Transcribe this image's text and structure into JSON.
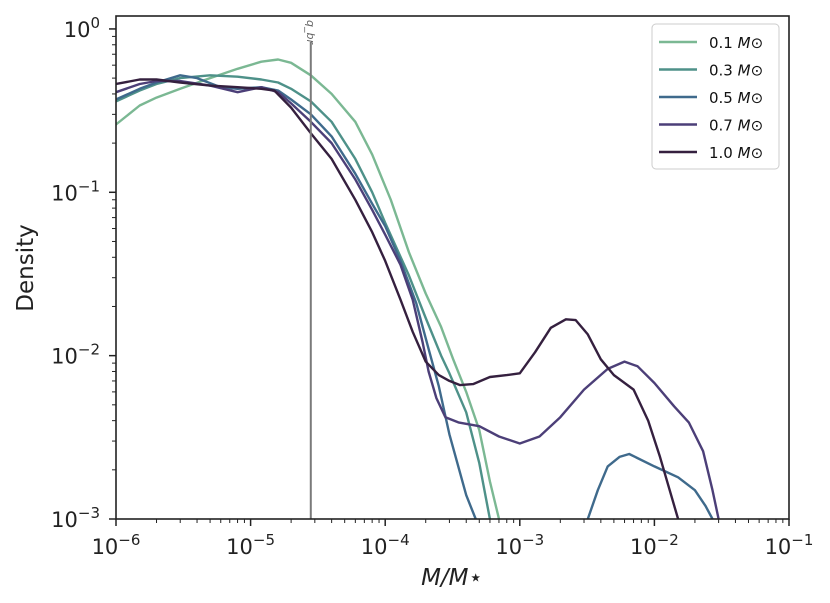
{
  "chart_data": {
    "type": "line",
    "x_scale": "log",
    "y_scale": "log",
    "xlabel": "M/M⋆",
    "ylabel": "Density",
    "xlim": [
      1e-06,
      0.1
    ],
    "ylim": [
      0.001,
      1.2
    ],
    "x_ticks": [
      {
        "value": 1e-06,
        "base": "10",
        "exp": "−6"
      },
      {
        "value": 1e-05,
        "base": "10",
        "exp": "−5"
      },
      {
        "value": 0.0001,
        "base": "10",
        "exp": "−4"
      },
      {
        "value": 0.001,
        "base": "10",
        "exp": "−3"
      },
      {
        "value": 0.01,
        "base": "10",
        "exp": "−2"
      },
      {
        "value": 0.1,
        "base": "10",
        "exp": "−1"
      }
    ],
    "y_ticks": [
      {
        "value": 1,
        "base": "10",
        "exp": "0"
      },
      {
        "value": 0.1,
        "base": "10",
        "exp": "−1"
      },
      {
        "value": 0.01,
        "base": "10",
        "exp": "−2"
      },
      {
        "value": 0.001,
        "base": "10",
        "exp": "−3"
      }
    ],
    "vline": {
      "x": 2.8e-05,
      "label": "q_br",
      "color": "#7a7a7a"
    },
    "legend": {
      "location": "top-right",
      "unit_symbol": "M⊙"
    },
    "series": [
      {
        "name": "0.1",
        "color": "#7bb893",
        "points": [
          [
            1e-06,
            0.26
          ],
          [
            1.5e-06,
            0.34
          ],
          [
            2e-06,
            0.38
          ],
          [
            3e-06,
            0.43
          ],
          [
            5e-06,
            0.5
          ],
          [
            8e-06,
            0.57
          ],
          [
            1.2e-05,
            0.63
          ],
          [
            1.6e-05,
            0.65
          ],
          [
            2e-05,
            0.62
          ],
          [
            2.8e-05,
            0.52
          ],
          [
            4e-05,
            0.4
          ],
          [
            6e-05,
            0.27
          ],
          [
            8e-05,
            0.17
          ],
          [
            0.00011,
            0.09
          ],
          [
            0.00015,
            0.043
          ],
          [
            0.0002,
            0.024
          ],
          [
            0.00026,
            0.015
          ],
          [
            0.00032,
            0.0095
          ],
          [
            0.0004,
            0.006
          ],
          [
            0.0005,
            0.0035
          ],
          [
            0.0006,
            0.0017
          ],
          [
            0.0007,
            0.001
          ]
        ]
      },
      {
        "name": "0.3",
        "color": "#4e9189",
        "points": [
          [
            1e-06,
            0.36
          ],
          [
            1.5e-06,
            0.42
          ],
          [
            2e-06,
            0.46
          ],
          [
            3e-06,
            0.5
          ],
          [
            5e-06,
            0.52
          ],
          [
            8e-06,
            0.51
          ],
          [
            1.2e-05,
            0.49
          ],
          [
            1.6e-05,
            0.47
          ],
          [
            2e-05,
            0.43
          ],
          [
            2.8e-05,
            0.36
          ],
          [
            4e-05,
            0.27
          ],
          [
            6e-05,
            0.16
          ],
          [
            8e-05,
            0.1
          ],
          [
            0.0001,
            0.065
          ],
          [
            0.00015,
            0.031
          ],
          [
            0.0002,
            0.017
          ],
          [
            0.00026,
            0.01
          ],
          [
            0.0003,
            0.0078
          ],
          [
            0.0004,
            0.0045
          ],
          [
            0.0005,
            0.0022
          ],
          [
            0.0006,
            0.001
          ]
        ]
      },
      {
        "name": "0.5",
        "color": "#3f6a8c",
        "points": [
          [
            1e-06,
            0.37
          ],
          [
            1.5e-06,
            0.43
          ],
          [
            2e-06,
            0.47
          ],
          [
            3e-06,
            0.52
          ],
          [
            4e-06,
            0.5
          ],
          [
            6e-06,
            0.44
          ],
          [
            8e-06,
            0.43
          ],
          [
            1.2e-05,
            0.44
          ],
          [
            1.6e-05,
            0.42
          ],
          [
            2e-05,
            0.37
          ],
          [
            2.8e-05,
            0.3
          ],
          [
            4e-05,
            0.22
          ],
          [
            6e-05,
            0.13
          ],
          [
            8e-05,
            0.085
          ],
          [
            0.0001,
            0.062
          ],
          [
            0.00013,
            0.038
          ],
          [
            0.00017,
            0.021
          ],
          [
            0.00021,
            0.011
          ],
          [
            0.00025,
            0.0065
          ],
          [
            0.0003,
            0.0033
          ],
          [
            0.0004,
            0.0014
          ],
          [
            0.00047,
            0.001
          ],
          [
            0.0032,
            0.001
          ],
          [
            0.0038,
            0.0015
          ],
          [
            0.0045,
            0.0021
          ],
          [
            0.0055,
            0.0024
          ],
          [
            0.0065,
            0.0025
          ],
          [
            0.01,
            0.0021
          ],
          [
            0.015,
            0.0018
          ],
          [
            0.02,
            0.0015
          ],
          [
            0.024,
            0.0012
          ],
          [
            0.027,
            0.001
          ]
        ]
      },
      {
        "name": "0.7",
        "color": "#4c3f78",
        "points": [
          [
            1e-06,
            0.41
          ],
          [
            1.5e-06,
            0.46
          ],
          [
            2e-06,
            0.48
          ],
          [
            3e-06,
            0.48
          ],
          [
            5e-06,
            0.45
          ],
          [
            8e-06,
            0.41
          ],
          [
            1.2e-05,
            0.44
          ],
          [
            1.6e-05,
            0.41
          ],
          [
            2e-05,
            0.35
          ],
          [
            2.8e-05,
            0.27
          ],
          [
            4e-05,
            0.2
          ],
          [
            6e-05,
            0.12
          ],
          [
            8e-05,
            0.078
          ],
          [
            0.0001,
            0.055
          ],
          [
            0.00013,
            0.036
          ],
          [
            0.00016,
            0.022
          ],
          [
            0.00019,
            0.012
          ],
          [
            0.00021,
            0.008
          ],
          [
            0.00024,
            0.0055
          ],
          [
            0.00028,
            0.0042
          ],
          [
            0.00035,
            0.0039
          ],
          [
            0.0005,
            0.0037
          ],
          [
            0.0007,
            0.0032
          ],
          [
            0.001,
            0.0029
          ],
          [
            0.0014,
            0.0032
          ],
          [
            0.002,
            0.0042
          ],
          [
            0.003,
            0.0062
          ],
          [
            0.0045,
            0.0083
          ],
          [
            0.006,
            0.0092
          ],
          [
            0.0075,
            0.0086
          ],
          [
            0.01,
            0.0068
          ],
          [
            0.014,
            0.0049
          ],
          [
            0.018,
            0.0039
          ],
          [
            0.023,
            0.0026
          ],
          [
            0.027,
            0.0015
          ],
          [
            0.03,
            0.001
          ]
        ]
      },
      {
        "name": "1.0",
        "color": "#35203f",
        "points": [
          [
            1e-06,
            0.46
          ],
          [
            1.5e-06,
            0.49
          ],
          [
            2e-06,
            0.49
          ],
          [
            3e-06,
            0.47
          ],
          [
            5e-06,
            0.45
          ],
          [
            8e-06,
            0.44
          ],
          [
            1.2e-05,
            0.43
          ],
          [
            1.5e-05,
            0.42
          ],
          [
            2e-05,
            0.33
          ],
          [
            2.8e-05,
            0.23
          ],
          [
            4e-05,
            0.16
          ],
          [
            6e-05,
            0.09
          ],
          [
            8e-05,
            0.057
          ],
          [
            0.0001,
            0.038
          ],
          [
            0.00013,
            0.022
          ],
          [
            0.00016,
            0.014
          ],
          [
            0.0002,
            0.0092
          ],
          [
            0.00025,
            0.0076
          ],
          [
            0.0003,
            0.007
          ],
          [
            0.00036,
            0.0066
          ],
          [
            0.00045,
            0.0067
          ],
          [
            0.0006,
            0.0074
          ],
          [
            0.0008,
            0.0076
          ],
          [
            0.001,
            0.0078
          ],
          [
            0.0013,
            0.0105
          ],
          [
            0.0017,
            0.0148
          ],
          [
            0.0022,
            0.0167
          ],
          [
            0.0026,
            0.0165
          ],
          [
            0.0032,
            0.0135
          ],
          [
            0.004,
            0.0095
          ],
          [
            0.005,
            0.0076
          ],
          [
            0.007,
            0.0062
          ],
          [
            0.009,
            0.004
          ],
          [
            0.011,
            0.0024
          ],
          [
            0.013,
            0.0015
          ],
          [
            0.015,
            0.001
          ]
        ]
      }
    ]
  }
}
